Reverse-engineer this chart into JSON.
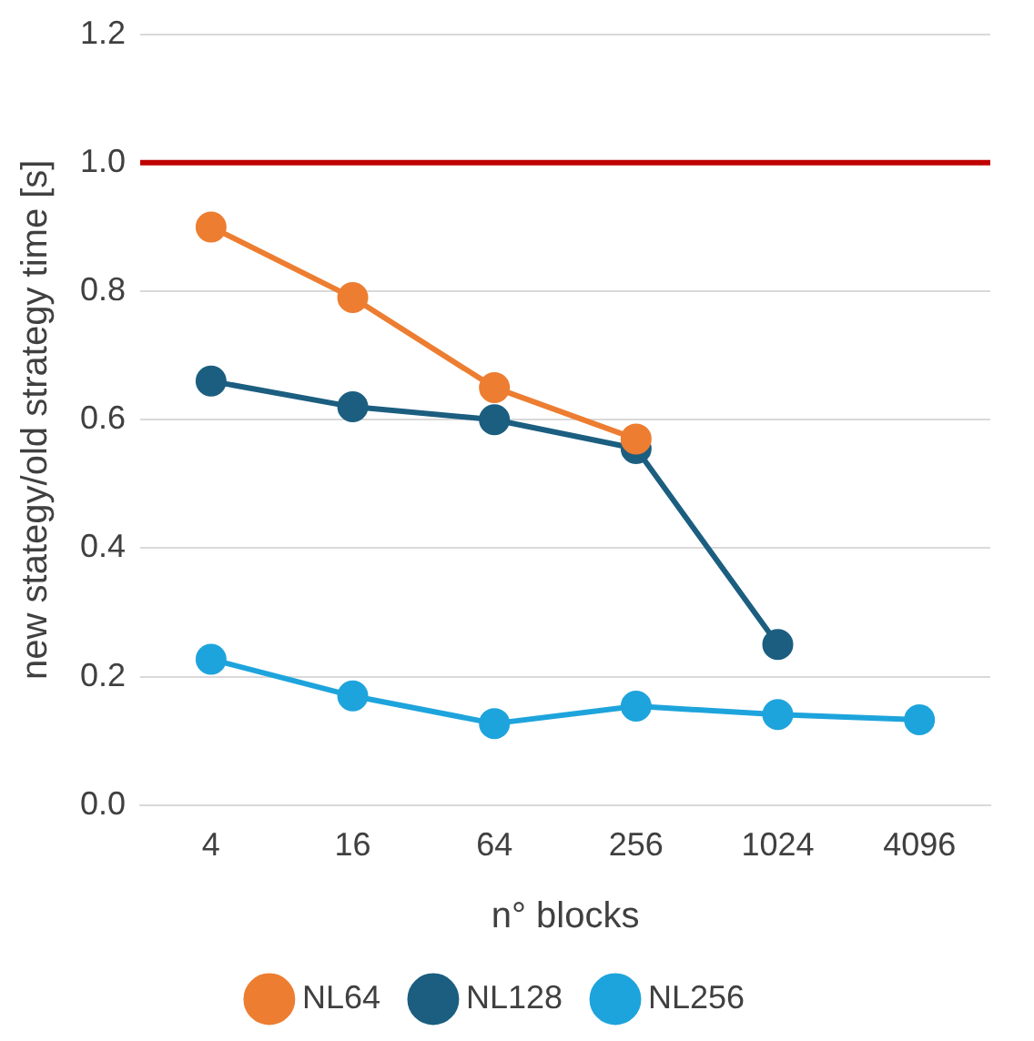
{
  "chart_data": {
    "type": "line",
    "xlabel": "n° blocks",
    "ylabel": "new stategy/old strategy time [s]",
    "categories": [
      "4",
      "16",
      "64",
      "256",
      "1024",
      "4096"
    ],
    "series": [
      {
        "name": "NL64",
        "color": "#ed7d31",
        "values": [
          0.9,
          0.79,
          0.65,
          0.57,
          null,
          null
        ]
      },
      {
        "name": "NL128",
        "color": "#1b5e80",
        "values": [
          0.66,
          0.62,
          0.6,
          0.555,
          0.25,
          null
        ]
      },
      {
        "name": "NL256",
        "color": "#1ea4dc",
        "values": [
          0.227,
          0.17,
          0.127,
          0.154,
          0.141,
          0.133
        ]
      }
    ],
    "ylim": [
      0,
      1.2
    ],
    "yticks": [
      {
        "value": 0,
        "label": "0.0"
      },
      {
        "value": 0.2,
        "label": "0.2"
      },
      {
        "value": 0.4,
        "label": "0.4"
      },
      {
        "value": 0.6,
        "label": "0.6"
      },
      {
        "value": 0.8,
        "label": "0.8"
      },
      {
        "value": 1,
        "label": "1.0"
      },
      {
        "value": 1.2,
        "label": "1.2"
      }
    ],
    "ref_lines": [
      {
        "axis": "y",
        "value": 1.0,
        "color": "#c00000"
      }
    ],
    "grid": "y",
    "legend": "bottom",
    "marker": "circle",
    "line_style": "solid"
  }
}
